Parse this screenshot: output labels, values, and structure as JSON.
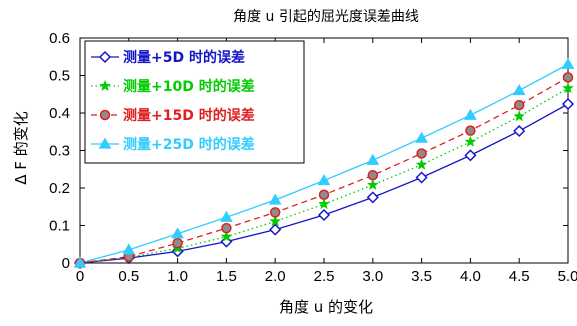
{
  "chart_data": {
    "type": "line",
    "title": "角度 u 引起的屈光度误差曲线",
    "xlabel": "角度 u 的变化",
    "ylabel": "Δ F 的变化",
    "xlim": [
      0,
      5
    ],
    "ylim": [
      0,
      0.6
    ],
    "x_ticks": [
      "0",
      "0.5",
      "1.0",
      "1.5",
      "2.0",
      "2.5",
      "3.0",
      "3.5",
      "4.0",
      "4.5",
      "5.0"
    ],
    "y_ticks": [
      "0",
      "0.1",
      "0.2",
      "0.3",
      "0.4",
      "0.5",
      "0.6"
    ],
    "x": [
      0,
      0.5,
      1.0,
      1.5,
      2.0,
      2.5,
      3.0,
      3.5,
      4.0,
      4.5,
      5.0
    ],
    "grid": false,
    "legend_position": "top-left",
    "series": [
      {
        "name": "测量+5D 时的误差",
        "values": [
          0,
          0.013,
          0.031,
          0.057,
          0.089,
          0.128,
          0.175,
          0.228,
          0.287,
          0.352,
          0.424
        ],
        "color": "#1515c8",
        "line_style": "solid",
        "marker": "diamond"
      },
      {
        "name": "测量+10D 时的误差",
        "values": [
          0,
          0.015,
          0.039,
          0.07,
          0.111,
          0.157,
          0.208,
          0.262,
          0.323,
          0.391,
          0.466
        ],
        "color": "#00cc00",
        "line_style": "dotted",
        "marker": "star"
      },
      {
        "name": "测量+15D 时的误差",
        "values": [
          0,
          0.017,
          0.053,
          0.093,
          0.135,
          0.182,
          0.234,
          0.292,
          0.353,
          0.421,
          0.495
        ],
        "color": "#e02020",
        "line_style": "dashed",
        "marker": "circle"
      },
      {
        "name": "测量+25D 时的误差",
        "values": [
          0,
          0.035,
          0.078,
          0.122,
          0.168,
          0.22,
          0.274,
          0.333,
          0.394,
          0.46,
          0.53
        ],
        "color": "#33ccff",
        "line_style": "solid",
        "marker": "triangle"
      }
    ]
  }
}
